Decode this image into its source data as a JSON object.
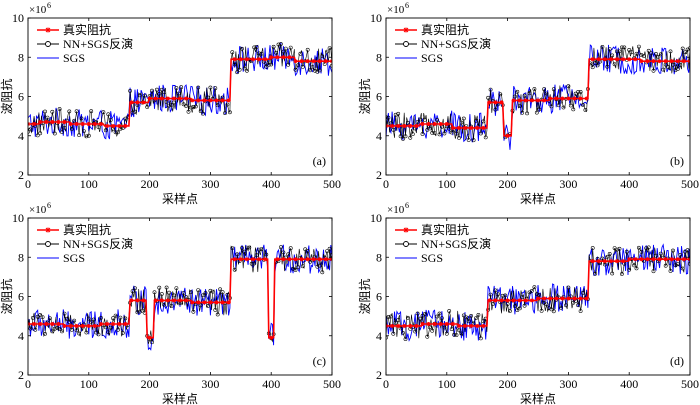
{
  "figure": {
    "x_ticks": [
      0,
      100,
      200,
      300,
      400,
      500
    ],
    "y_ticks": [
      2,
      4,
      6,
      8,
      10
    ],
    "xlim": [
      0,
      500
    ],
    "ylim": [
      2,
      10
    ],
    "scale_label": "×10",
    "scale_exp": "6",
    "legend": [
      "真实阻抗",
      "NN+SGS反演",
      "SGS"
    ]
  },
  "colors": {
    "true_series": "#ff0000",
    "nn_series": "#000000",
    "sgs_series": "#0000ff",
    "axis": "#000000"
  },
  "chart_data": [
    {
      "type": "line",
      "panel": "(a)",
      "xlabel": "采样点",
      "ylabel": "波阻抗",
      "xlim": [
        0,
        500
      ],
      "ylim": [
        2,
        10
      ],
      "y_scale": "×10^6",
      "legend_position": "top-left",
      "grid": false,
      "series_names": [
        "真实阻抗",
        "NN+SGS反演",
        "SGS"
      ],
      "true_segments": [
        {
          "x_start": 0,
          "x_end": 20,
          "value": 4.6
        },
        {
          "x_start": 20,
          "x_end": 70,
          "value": 4.7
        },
        {
          "x_start": 70,
          "x_end": 125,
          "value": 4.6
        },
        {
          "x_start": 125,
          "x_end": 168,
          "value": 4.5
        },
        {
          "x_start": 168,
          "x_end": 200,
          "value": 5.7
        },
        {
          "x_start": 200,
          "x_end": 270,
          "value": 5.9
        },
        {
          "x_start": 270,
          "x_end": 333,
          "value": 5.8
        },
        {
          "x_start": 333,
          "x_end": 400,
          "value": 7.9
        },
        {
          "x_start": 400,
          "x_end": 440,
          "value": 8.0
        },
        {
          "x_start": 440,
          "x_end": 500,
          "value": 7.8
        }
      ],
      "noise_amplitude": 0.75
    },
    {
      "type": "line",
      "panel": "(b)",
      "xlabel": "采样点",
      "ylabel": "波阻抗",
      "xlim": [
        0,
        500
      ],
      "ylim": [
        2,
        10
      ],
      "y_scale": "×10^6",
      "legend_position": "top-left",
      "grid": false,
      "series_names": [
        "真实阻抗",
        "NN+SGS反演",
        "SGS"
      ],
      "true_segments": [
        {
          "x_start": 0,
          "x_end": 55,
          "value": 4.5
        },
        {
          "x_start": 55,
          "x_end": 110,
          "value": 4.6
        },
        {
          "x_start": 110,
          "x_end": 168,
          "value": 4.4
        },
        {
          "x_start": 168,
          "x_end": 194,
          "value": 5.7
        },
        {
          "x_start": 194,
          "x_end": 208,
          "value": 4.0
        },
        {
          "x_start": 208,
          "x_end": 270,
          "value": 5.8
        },
        {
          "x_start": 270,
          "x_end": 333,
          "value": 5.9
        },
        {
          "x_start": 333,
          "x_end": 420,
          "value": 7.9
        },
        {
          "x_start": 420,
          "x_end": 500,
          "value": 7.8
        }
      ],
      "noise_amplitude": 0.75
    },
    {
      "type": "line",
      "panel": "(c)",
      "xlabel": "采样点",
      "ylabel": "波阻抗",
      "xlim": [
        0,
        500
      ],
      "ylim": [
        2,
        10
      ],
      "y_scale": "×10^6",
      "legend_position": "top-left",
      "grid": false,
      "series_names": [
        "真实阻抗",
        "NN+SGS反演",
        "SGS"
      ],
      "true_segments": [
        {
          "x_start": 0,
          "x_end": 60,
          "value": 4.6
        },
        {
          "x_start": 60,
          "x_end": 120,
          "value": 4.5
        },
        {
          "x_start": 120,
          "x_end": 168,
          "value": 4.6
        },
        {
          "x_start": 168,
          "x_end": 195,
          "value": 5.8
        },
        {
          "x_start": 195,
          "x_end": 207,
          "value": 3.9
        },
        {
          "x_start": 207,
          "x_end": 270,
          "value": 5.8
        },
        {
          "x_start": 270,
          "x_end": 333,
          "value": 5.7
        },
        {
          "x_start": 333,
          "x_end": 396,
          "value": 7.9
        },
        {
          "x_start": 396,
          "x_end": 406,
          "value": 3.9
        },
        {
          "x_start": 406,
          "x_end": 500,
          "value": 7.9
        }
      ],
      "noise_amplitude": 0.75
    },
    {
      "type": "line",
      "panel": "(d)",
      "xlabel": "采样点",
      "ylabel": "波阻抗",
      "xlim": [
        0,
        500
      ],
      "ylim": [
        2,
        10
      ],
      "y_scale": "×10^6",
      "legend_position": "top-left",
      "grid": false,
      "series_names": [
        "真实阻抗",
        "NN+SGS反演",
        "SGS"
      ],
      "true_segments": [
        {
          "x_start": 0,
          "x_end": 60,
          "value": 4.5
        },
        {
          "x_start": 60,
          "x_end": 120,
          "value": 4.6
        },
        {
          "x_start": 120,
          "x_end": 168,
          "value": 4.5
        },
        {
          "x_start": 168,
          "x_end": 250,
          "value": 5.8
        },
        {
          "x_start": 250,
          "x_end": 333,
          "value": 5.9
        },
        {
          "x_start": 333,
          "x_end": 400,
          "value": 7.8
        },
        {
          "x_start": 400,
          "x_end": 500,
          "value": 7.9
        }
      ],
      "noise_amplitude": 0.75
    }
  ]
}
